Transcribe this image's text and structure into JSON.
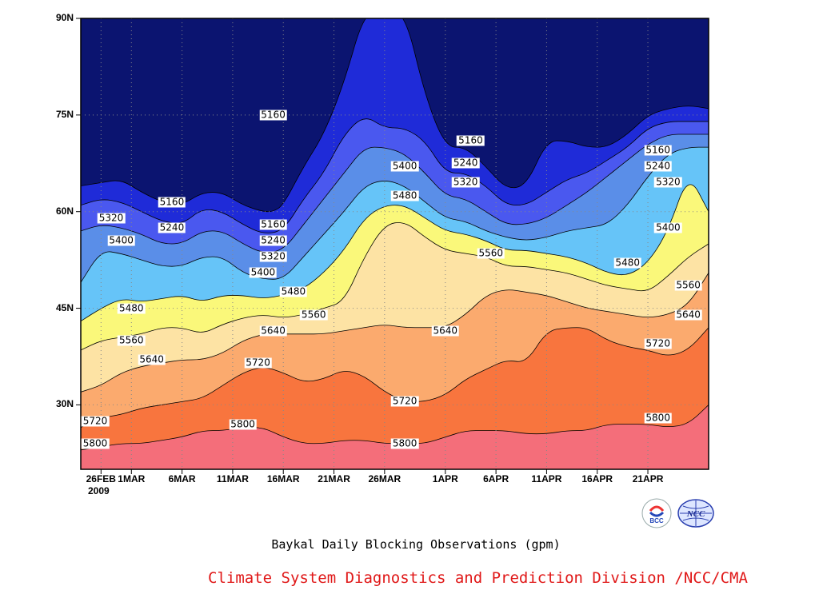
{
  "chart_data": {
    "type": "heatmap",
    "subtitle": "Baykal Daily Blocking Observations (gpm)",
    "x_ticks": [
      "26FEB",
      "1MAR",
      "6MAR",
      "11MAR",
      "16MAR",
      "21MAR",
      "26MAR",
      "1APR",
      "6APR",
      "11APR",
      "16APR",
      "21APR"
    ],
    "x_year": "2009",
    "y_ticks": [
      "30N",
      "45N",
      "60N",
      "75N",
      "90N"
    ],
    "levels": [
      5160,
      5240,
      5320,
      5400,
      5480,
      5560,
      5640,
      5720,
      5800
    ],
    "colors": [
      "#0b1470",
      "#1f2bd8",
      "#4a58ef",
      "#5a8ee8",
      "#66c4f8",
      "#faf87a",
      "#fde3a4",
      "#fbaa6e",
      "#f8753e",
      "#f46e7a"
    ],
    "contour_labels": [
      {
        "text": "5160",
        "day": 17,
        "lat": 75
      },
      {
        "text": "5160",
        "day": 36.5,
        "lat": 71
      },
      {
        "text": "5160",
        "day": 55,
        "lat": 69.5
      },
      {
        "text": "5160",
        "day": 7,
        "lat": 61.5
      },
      {
        "text": "5160",
        "day": 17,
        "lat": 58
      },
      {
        "text": "5240",
        "day": 7,
        "lat": 57.5
      },
      {
        "text": "5240",
        "day": 17,
        "lat": 55.5
      },
      {
        "text": "5240",
        "day": 36,
        "lat": 67.5
      },
      {
        "text": "5240",
        "day": 55,
        "lat": 67
      },
      {
        "text": "5320",
        "day": 1,
        "lat": 59
      },
      {
        "text": "5320",
        "day": 17,
        "lat": 53
      },
      {
        "text": "5320",
        "day": 36,
        "lat": 64.5
      },
      {
        "text": "5320",
        "day": 56,
        "lat": 64.5
      },
      {
        "text": "5400",
        "day": 2,
        "lat": 55.5
      },
      {
        "text": "5400",
        "day": 16,
        "lat": 50.5
      },
      {
        "text": "5400",
        "day": 30,
        "lat": 67
      },
      {
        "text": "5400",
        "day": 56,
        "lat": 57.5
      },
      {
        "text": "5480",
        "day": 3,
        "lat": 45
      },
      {
        "text": "5480",
        "day": 19,
        "lat": 47.5
      },
      {
        "text": "5480",
        "day": 30,
        "lat": 62.5
      },
      {
        "text": "5480",
        "day": 52,
        "lat": 52
      },
      {
        "text": "5560",
        "day": 3,
        "lat": 40
      },
      {
        "text": "5560",
        "day": 21,
        "lat": 44
      },
      {
        "text": "5560",
        "day": 38.5,
        "lat": 53.5
      },
      {
        "text": "5560",
        "day": 58,
        "lat": 48.5
      },
      {
        "text": "5640",
        "day": 5,
        "lat": 37
      },
      {
        "text": "5640",
        "day": 17,
        "lat": 41.5
      },
      {
        "text": "5640",
        "day": 34,
        "lat": 41.5
      },
      {
        "text": "5640",
        "day": 58,
        "lat": 44
      },
      {
        "text": "5720",
        "day": -1,
        "lat": 27.5
      },
      {
        "text": "5720",
        "day": 15.5,
        "lat": 36.5
      },
      {
        "text": "5720",
        "day": 30,
        "lat": 30.5
      },
      {
        "text": "5720",
        "day": 55,
        "lat": 39.5
      },
      {
        "text": "5800",
        "day": -1,
        "lat": 24
      },
      {
        "text": "5800",
        "day": 14,
        "lat": 27
      },
      {
        "text": "5800",
        "day": 30,
        "lat": 24
      },
      {
        "text": "5800",
        "day": 55,
        "lat": 28
      }
    ]
  },
  "credit": "Climate System Diagnostics and Prediction Division /NCC/CMA",
  "logos": [
    "BCC",
    "NCC"
  ]
}
